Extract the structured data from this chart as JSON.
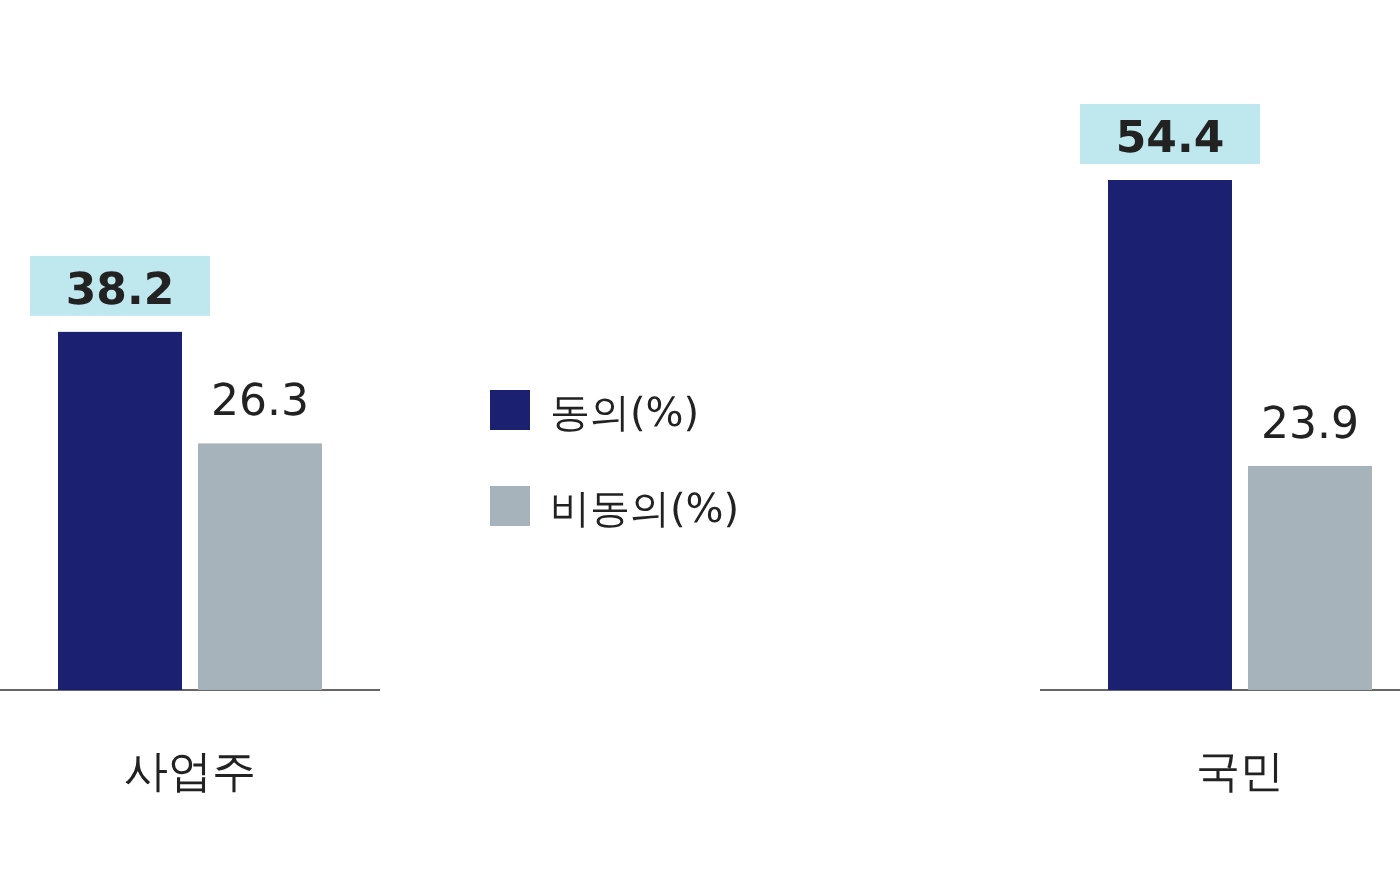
{
  "chart_data": {
    "type": "bar",
    "categories": [
      "사업주",
      "국민"
    ],
    "series": [
      {
        "name": "동의(%)",
        "color": "#1b2170",
        "values": [
          38.2,
          54.4
        ]
      },
      {
        "name": "비동의(%)",
        "color": "#a7b3bb",
        "values": [
          26.3,
          23.9
        ]
      }
    ],
    "data_labels": true,
    "legend": "center"
  }
}
